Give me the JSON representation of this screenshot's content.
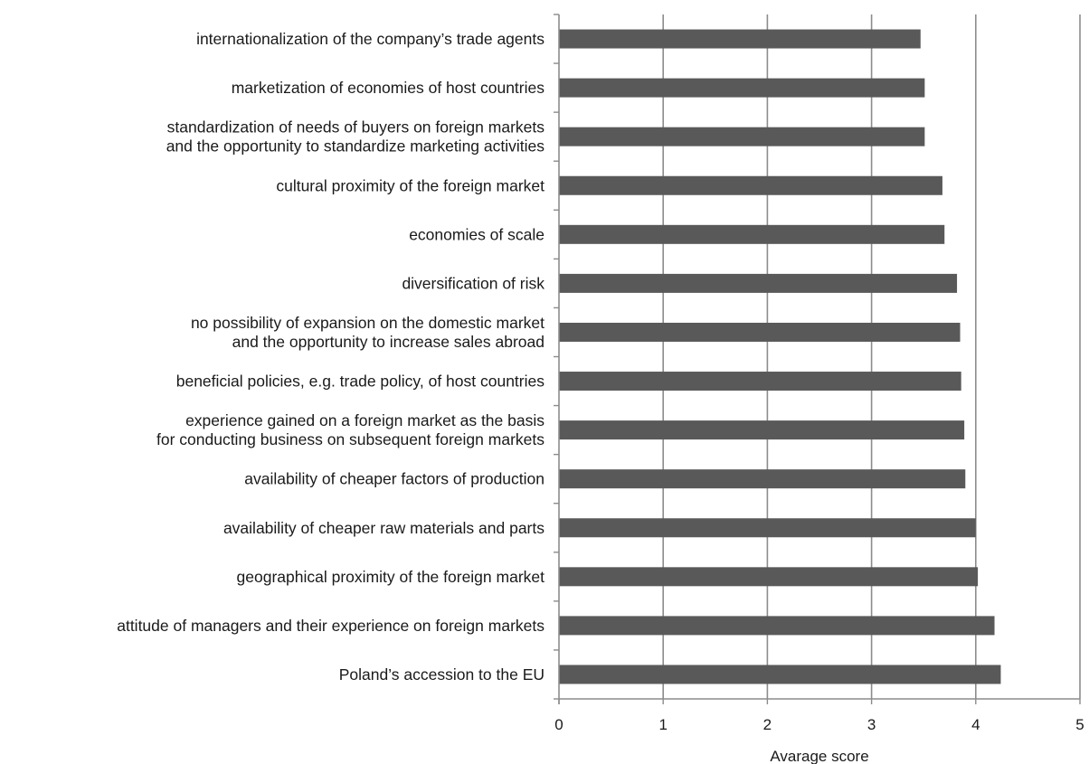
{
  "chart_data": {
    "type": "bar",
    "orientation": "horizontal",
    "title": "",
    "xlabel": "Avarage score",
    "ylabel": "",
    "xlim": [
      0,
      5
    ],
    "xticks": [
      0,
      1,
      2,
      3,
      4,
      5
    ],
    "grid": true,
    "legend": "none",
    "bar_color": "#595959",
    "gridline_color": "#8c8c8c",
    "categories": [
      [
        "internationalization of the company’s trade agents"
      ],
      [
        "marketization of economies of host countries"
      ],
      [
        "standardization of needs of buyers on foreign markets",
        "and the opportunity to standardize marketing activities"
      ],
      [
        "cultural proximity of the foreign market"
      ],
      [
        "economies of scale"
      ],
      [
        "diversification of risk"
      ],
      [
        "no possibility of expansion on the domestic market",
        "and the opportunity to increase sales abroad"
      ],
      [
        "beneficial policies, e.g. trade policy, of host countries"
      ],
      [
        "experience gained on a foreign market as the basis",
        "for conducting business on subsequent foreign markets"
      ],
      [
        "availability of cheaper factors of production"
      ],
      [
        "availability of cheaper raw materials and parts"
      ],
      [
        "geographical proximity of the foreign market"
      ],
      [
        "attitude of managers and their experience on foreign markets"
      ],
      [
        "Poland’s accession to the EU"
      ]
    ],
    "values": [
      3.47,
      3.51,
      3.51,
      3.68,
      3.7,
      3.82,
      3.85,
      3.86,
      3.89,
      3.9,
      4.0,
      4.02,
      4.18,
      4.24
    ]
  }
}
